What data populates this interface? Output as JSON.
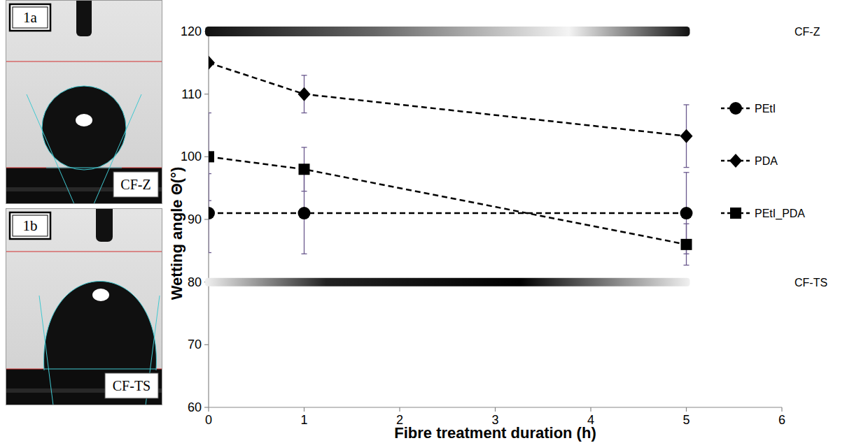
{
  "chart_data": {
    "type": "line",
    "xlabel": "Fibre treatment duration (h)",
    "ylabel": "Wetting angle Θ(°)",
    "x": [
      0,
      1,
      5
    ],
    "xlim": [
      0,
      6
    ],
    "xticks": [
      0,
      1,
      2,
      3,
      4,
      5,
      6
    ],
    "ylim": [
      60,
      120
    ],
    "yticks": [
      60,
      70,
      80,
      90,
      100,
      110,
      120
    ],
    "grid": false,
    "legend": "right",
    "line_style": "dashed",
    "series": [
      {
        "name": "PEtI",
        "color": "#000000",
        "marker": "circle",
        "values": [
          91,
          91,
          91
        ],
        "errors": [
          6.3,
          6.5,
          6.5
        ]
      },
      {
        "name": "PDA",
        "color": "#000000",
        "marker": "diamond",
        "values": [
          115,
          110,
          103.3
        ],
        "errors": [
          0,
          3,
          5
        ]
      },
      {
        "name": "PEtI_PDA",
        "color": "#000000",
        "marker": "square",
        "values": [
          100,
          98,
          86
        ],
        "errors": [
          7,
          3.5,
          3.3
        ]
      }
    ],
    "reference_lines": [
      {
        "label": "CF-Z",
        "value": 120,
        "x_range": [
          0,
          5
        ]
      },
      {
        "label": "CF-TS",
        "value": 80,
        "x_range": [
          0,
          5
        ]
      }
    ]
  },
  "photos": [
    {
      "label": "1a",
      "caption": "CF-Z"
    },
    {
      "label": "1b",
      "caption": "CF-TS"
    }
  ]
}
